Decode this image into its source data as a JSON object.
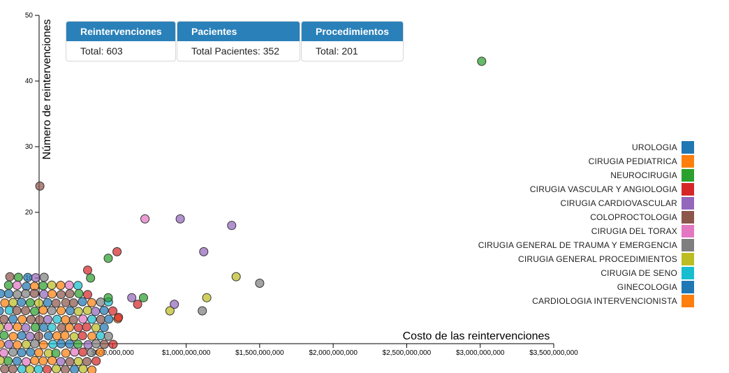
{
  "panels": [
    {
      "title": "Reintervenciones",
      "body": "Total: 603"
    },
    {
      "title": "Pacientes",
      "body": "Total Pacientes: 352"
    },
    {
      "title": "Procedimientos",
      "body": "Total: 201"
    }
  ],
  "chart_data": {
    "type": "scatter",
    "xlabel": "Costo de las reintervenciones",
    "ylabel": "Número de reintervenciones",
    "xlim": [
      0,
      3500000000
    ],
    "ylim": [
      0,
      50
    ],
    "x_ticks": [
      "$500,000,000",
      "$1,000,000,000",
      "$1,500,000,000",
      "$2,000,000,000",
      "$2,500,000,000",
      "$3,000,000,000",
      "$3,500,000,000"
    ],
    "y_ticks": [
      "10",
      "20",
      "30",
      "40",
      "50"
    ],
    "legend_position": "right",
    "series": [
      {
        "name": "UROLOGIA",
        "color": "#1f77b4"
      },
      {
        "name": "CIRUGIA PEDIATRICA",
        "color": "#ff7f0e"
      },
      {
        "name": "NEUROCIRUGIA",
        "color": "#2ca02c"
      },
      {
        "name": "CIRUGIA VASCULAR Y ANGIOLOGIA",
        "color": "#d62728"
      },
      {
        "name": "CIRUGIA CARDIOVASCULAR",
        "color": "#9467bd"
      },
      {
        "name": "COLOPROCTOLOGIA",
        "color": "#8c564b"
      },
      {
        "name": "CIRUGIA DEL TORAX",
        "color": "#e377c2"
      },
      {
        "name": "CIRUGIA GENERAL DE TRAUMA Y EMERGENCIA",
        "color": "#7f7f7f"
      },
      {
        "name": "CIRUGIA GENERAL PROCEDIMIENTOS",
        "color": "#bcbd22"
      },
      {
        "name": "CIRUGIA DE SENO",
        "color": "#17becf"
      },
      {
        "name": "GINECOLOGIA",
        "color": "#1f77b4"
      },
      {
        "name": "CARDIOLOGIA INTERVENCIONISTA",
        "color": "#ff7f0e"
      }
    ],
    "points": [
      {
        "x": 3010000000,
        "y": 43,
        "s": 2
      },
      {
        "x": 5000000,
        "y": 24,
        "s": 5
      },
      {
        "x": 720000000,
        "y": 19,
        "s": 6
      },
      {
        "x": 960000000,
        "y": 19,
        "s": 4
      },
      {
        "x": 1310000000,
        "y": 18,
        "s": 4
      },
      {
        "x": 1120000000,
        "y": 14,
        "s": 4
      },
      {
        "x": 530000000,
        "y": 14,
        "s": 3
      },
      {
        "x": 470000000,
        "y": 13,
        "s": 2
      },
      {
        "x": 330000000,
        "y": 11.2,
        "s": 3
      },
      {
        "x": 350000000,
        "y": 10,
        "s": 2
      },
      {
        "x": 1340000000,
        "y": 10.2,
        "s": 8
      },
      {
        "x": 1500000000,
        "y": 9.2,
        "s": 7
      },
      {
        "x": 630000000,
        "y": 7,
        "s": 4
      },
      {
        "x": 710000000,
        "y": 7,
        "s": 2
      },
      {
        "x": 670000000,
        "y": 6,
        "s": 3
      },
      {
        "x": 920000000,
        "y": 6,
        "s": 4
      },
      {
        "x": 1140000000,
        "y": 7,
        "s": 8
      },
      {
        "x": 1110000000,
        "y": 5,
        "s": 7
      },
      {
        "x": 890000000,
        "y": 5,
        "s": 8
      },
      {
        "x": 470000000,
        "y": 7,
        "s": 2
      },
      {
        "x": 540000000,
        "y": 4,
        "s": 3
      }
    ]
  }
}
